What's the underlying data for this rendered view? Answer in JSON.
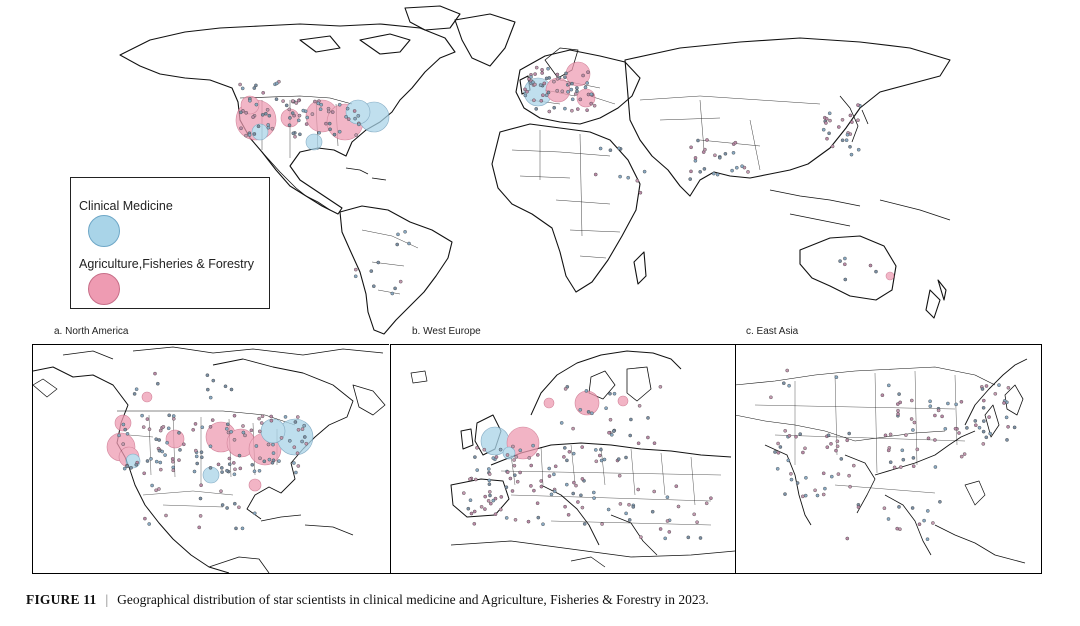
{
  "figure": {
    "number": "FIGURE 11",
    "separator": "|",
    "caption": "Geographical distribution of star scientists in clinical medicine and Agriculture, Fisheries & Forestry in 2023."
  },
  "legend": {
    "items": [
      {
        "label": "Clinical Medicine",
        "color": "#a9d4e8"
      },
      {
        "label": "Agriculture,Fisheries & Forestry",
        "color": "#ee9bb2"
      }
    ]
  },
  "panels": [
    {
      "id": "na",
      "label": "a. North America"
    },
    {
      "id": "we",
      "label": "b. West Europe"
    },
    {
      "id": "ea",
      "label": "c. East Asia"
    }
  ],
  "colors": {
    "clinical": "#a9d4e8",
    "agriculture": "#ee9bb2",
    "overlap": "#8c5a82",
    "coast": "#111111"
  }
}
